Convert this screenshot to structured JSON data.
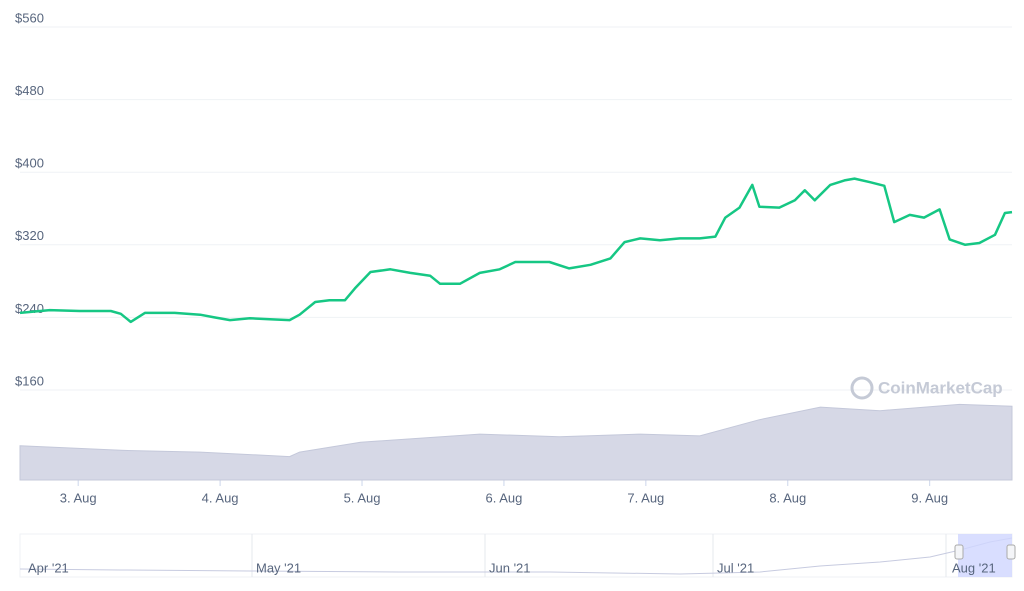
{
  "chart_data": {
    "type": "line",
    "ylim": [
      160,
      560
    ],
    "yticks": [
      {
        "value": 160,
        "label": "$160"
      },
      {
        "value": 240,
        "label": "$240"
      },
      {
        "value": 320,
        "label": "$320"
      },
      {
        "value": 400,
        "label": "$400"
      },
      {
        "value": 480,
        "label": "$480"
      },
      {
        "value": 560,
        "label": "$560"
      }
    ],
    "xlim": [
      2.59,
      9.58
    ],
    "xticks": [
      {
        "value": 3,
        "label": "3. Aug"
      },
      {
        "value": 4,
        "label": "4. Aug"
      },
      {
        "value": 5,
        "label": "5. Aug"
      },
      {
        "value": 6,
        "label": "6. Aug"
      },
      {
        "value": 7,
        "label": "7. Aug"
      },
      {
        "value": 8,
        "label": "8. Aug"
      },
      {
        "value": 9,
        "label": "9. Aug"
      }
    ],
    "grid": true,
    "y2lim": [
      0,
      100
    ],
    "watermark": "CoinMarketCap",
    "series": [
      {
        "color": "#16c784",
        "x": [
          2.59,
          2.8,
          3.01,
          3.23,
          3.3,
          3.37,
          3.47,
          3.68,
          3.86,
          3.96,
          4.07,
          4.21,
          4.35,
          4.49,
          4.56,
          4.67,
          4.77,
          4.88,
          4.95,
          5.06,
          5.2,
          5.34,
          5.48,
          5.55,
          5.69,
          5.83,
          5.97,
          6.08,
          6.18,
          6.32,
          6.46,
          6.61,
          6.75,
          6.85,
          6.96,
          7.1,
          7.24,
          7.38,
          7.49,
          7.56,
          7.66,
          7.75,
          7.8,
          7.94,
          8.05,
          8.12,
          8.19,
          8.3,
          8.4,
          8.47,
          8.58,
          8.68,
          8.75,
          8.86,
          8.96,
          9.07,
          9.14,
          9.25,
          9.35,
          9.46,
          9.53,
          9.58
        ],
        "values": [
          245,
          248,
          247,
          247,
          244,
          235,
          245,
          245,
          243,
          240,
          237,
          239,
          238,
          237,
          243,
          257,
          259,
          259,
          272,
          290,
          293,
          289,
          286,
          277,
          277,
          289,
          293,
          301,
          301,
          301,
          294,
          298,
          305,
          323,
          327,
          325,
          327,
          327,
          329,
          350,
          361,
          386,
          362,
          361,
          369,
          380,
          369,
          386,
          391,
          393,
          389,
          385,
          345,
          353,
          350,
          359,
          326,
          320,
          322,
          331,
          355,
          356
        ]
      },
      {
        "color": "#d1d4e3",
        "axis": "y2",
        "x": [
          2.59,
          3.3,
          3.86,
          4.49,
          4.56,
          4.99,
          5.83,
          6.39,
          6.96,
          7.38,
          7.8,
          8.23,
          8.65,
          9.21,
          9.58
        ],
        "values": [
          38,
          33,
          31,
          26,
          31,
          42,
          51,
          48,
          51,
          49,
          67,
          81,
          77,
          84,
          82
        ]
      }
    ],
    "navigator": {
      "labels": [
        "Apr '21",
        "May '21",
        "Jun '21",
        "Jul '21",
        "Aug '21"
      ]
    }
  }
}
